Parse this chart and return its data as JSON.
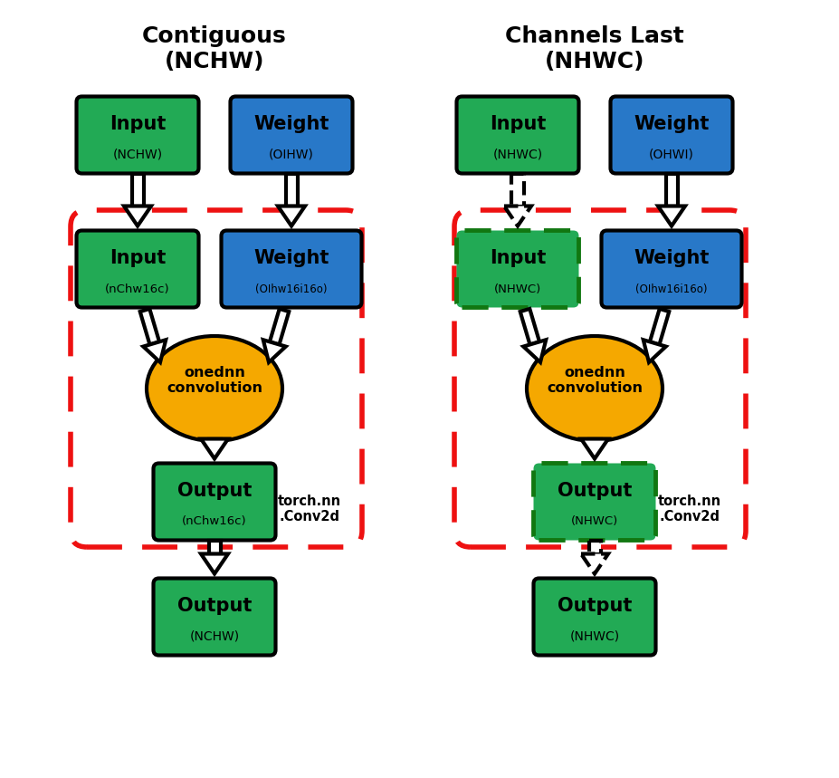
{
  "title_left": "Contiguous\n(NCHW)",
  "title_right": "Channels Last\n(NHWC)",
  "bg_color": "#ffffff",
  "green_color": "#22aa55",
  "blue_color": "#2878c8",
  "gold_color": "#f5a800",
  "red_color": "#ee1111",
  "black": "#000000",
  "left_col": {
    "input_top_label": "Input",
    "input_top_sub": "(NCHW)",
    "weight_top_label": "Weight",
    "weight_top_sub": "(OIHW)",
    "input_inner_label": "Input",
    "input_inner_sub": "(nChw16c)",
    "weight_inner_label": "Weight",
    "weight_inner_sub": "(OIhw16i16o)",
    "conv_label": "onednn\nconvolution",
    "output_inner_label": "Output",
    "output_inner_sub": "(nChw16c)",
    "output_bottom_label": "Output",
    "output_bottom_sub": "(NCHW)",
    "conv2d_label": "torch.nn\n.Conv2d"
  },
  "right_col": {
    "input_top_label": "Input",
    "input_top_sub": "(NHWC)",
    "weight_top_label": "Weight",
    "weight_top_sub": "(OHWI)",
    "input_inner_label": "Input",
    "input_inner_sub": "(NHWC)",
    "weight_inner_label": "Weight",
    "weight_inner_sub": "(OIhw16i16o)",
    "conv_label": "onednn\nconvolution",
    "output_inner_label": "Output",
    "output_inner_sub": "(NHWC)",
    "output_bottom_label": "Output",
    "output_bottom_sub": "(NHWC)",
    "conv2d_label": "torch.nn\n.Conv2d"
  }
}
